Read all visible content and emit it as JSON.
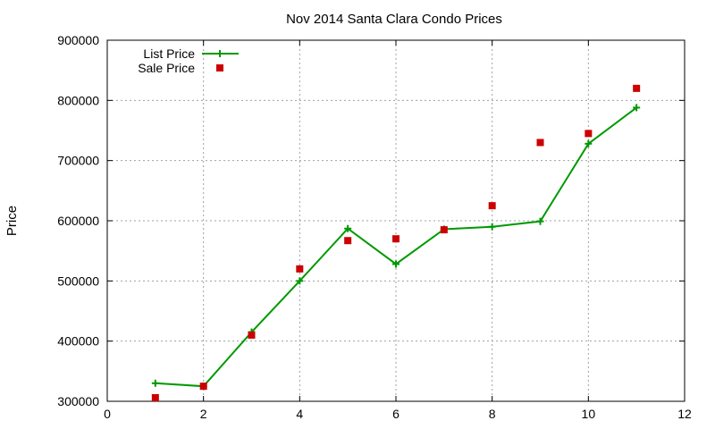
{
  "chart_data": {
    "type": "line",
    "title": "Nov 2014 Santa Clara Condo Prices",
    "xlabel": "",
    "ylabel": "Price",
    "xlim": [
      0,
      12
    ],
    "ylim": [
      300000,
      900000
    ],
    "xticks": [
      0,
      2,
      4,
      6,
      8,
      10,
      12
    ],
    "yticks": [
      300000,
      400000,
      500000,
      600000,
      700000,
      800000,
      900000
    ],
    "grid": true,
    "legend_position": "top-left",
    "series": [
      {
        "name": "List Price",
        "style": "line-plus",
        "color": "#009900",
        "x": [
          1,
          2,
          3,
          4,
          5,
          6,
          7,
          8,
          9,
          10,
          11
        ],
        "y": [
          330000,
          325000,
          415000,
          500000,
          587000,
          528000,
          586000,
          590000,
          599000,
          728000,
          788000
        ]
      },
      {
        "name": "Sale Price",
        "style": "square-markers",
        "color": "#cc0000",
        "x": [
          1,
          2,
          3,
          4,
          5,
          6,
          7,
          8,
          9,
          10,
          11
        ],
        "y": [
          306000,
          325000,
          410000,
          520000,
          567000,
          570000,
          585000,
          625000,
          730000,
          745000,
          820000
        ]
      }
    ]
  }
}
